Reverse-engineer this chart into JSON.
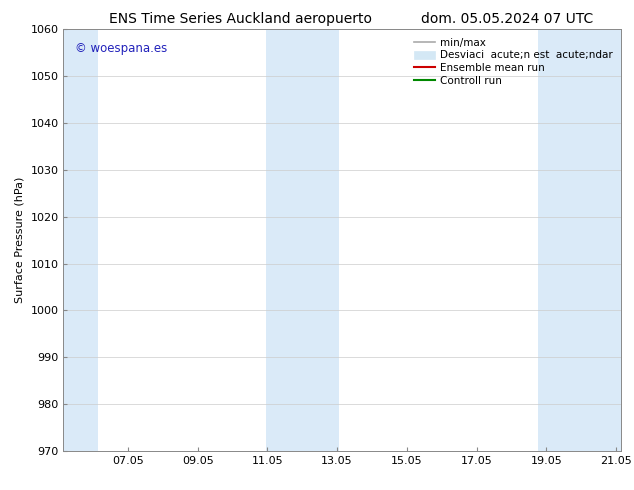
{
  "title_left": "ENS Time Series Auckland aeropuerto",
  "title_right": "dom. 05.05.2024 07 UTC",
  "ylabel": "Surface Pressure (hPa)",
  "ylim": [
    970,
    1060
  ],
  "yticks": [
    970,
    980,
    990,
    1000,
    1010,
    1020,
    1030,
    1040,
    1050,
    1060
  ],
  "xlim": [
    5.2,
    21.2
  ],
  "xticks": [
    7.05,
    9.05,
    11.05,
    13.05,
    15.05,
    17.05,
    19.05,
    21.05
  ],
  "xtick_labels": [
    "07.05",
    "09.05",
    "11.05",
    "13.05",
    "15.05",
    "17.05",
    "19.05",
    "21.05"
  ],
  "background_color": "#ffffff",
  "plot_bg_color": "#ffffff",
  "watermark_text": "© woespana.es",
  "watermark_color": "#2222bb",
  "shaded_bands": [
    {
      "x_start": 5.2,
      "x_end": 6.2,
      "color": "#daeaf8"
    },
    {
      "x_start": 11.0,
      "x_end": 13.1,
      "color": "#daeaf8"
    },
    {
      "x_start": 18.8,
      "x_end": 21.2,
      "color": "#daeaf8"
    }
  ],
  "legend_items": [
    {
      "label": "min/max",
      "type": "line",
      "color": "#aaaaaa",
      "lw": 1.2
    },
    {
      "label": "Desviaci  acute;n est  acute;ndar",
      "type": "rect",
      "color": "#d4e8f5"
    },
    {
      "label": "Ensemble mean run",
      "type": "line",
      "color": "#cc0000",
      "lw": 1.5
    },
    {
      "label": "Controll run",
      "type": "line",
      "color": "#008800",
      "lw": 1.5
    }
  ],
  "title_fontsize": 10,
  "ylabel_fontsize": 8,
  "tick_fontsize": 8,
  "legend_fontsize": 7.5,
  "watermark_fontsize": 8.5
}
